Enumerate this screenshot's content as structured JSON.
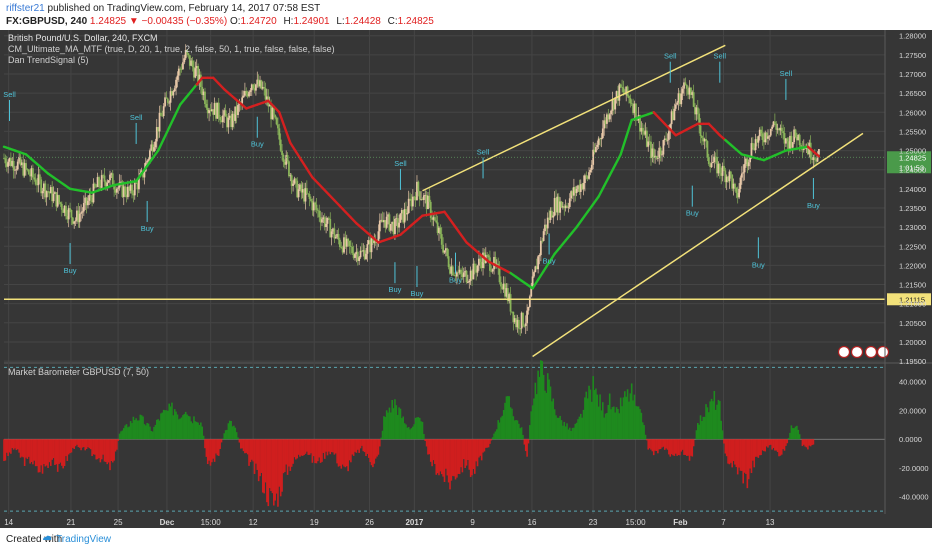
{
  "header": {
    "user": "riffster21",
    "published_text": " published on TradingView.com, February 14, 2017 07:58 EST",
    "symbol": "FX:GBPUSD, 240",
    "last": "1.24825",
    "change": "▼ −0.00435 (−0.35%)",
    "open_label": "O:",
    "open": "1.24720",
    "high_label": "H:",
    "high": "1.24901",
    "low_label": "L:",
    "low": "1.24428",
    "close_label": "C:",
    "close": "1.24825"
  },
  "legend": {
    "title": "British Pound/U.S. Dollar, 240, FXCM",
    "study1": "CM_Ultimate_MA_MTF (true, D, 20, 1, true, 2, false, 50, 1, true, false, false, false)",
    "study2": "Dan TrendSignal (5)",
    "oscillator": "Market Barometer GBPUSD (7, 50)"
  },
  "colors": {
    "background": "#363636",
    "grid": "#454545",
    "candle_up": "#e8c8a8",
    "candle_down": "#8ab45a",
    "ma_up": "#22c02a",
    "ma_down": "#d42020",
    "trendline": "#f2e17a",
    "signal_text": "#4fc3d8",
    "osc_up": "#1e8a1e",
    "osc_down": "#d01e1e"
  },
  "chart_data": [
    {
      "type": "candlestick",
      "title": "British Pound/U.S. Dollar, 240, FXCM",
      "x_ticks": [
        "14",
        "21",
        "25",
        "Dec",
        "15:00",
        "12",
        "19",
        "26",
        "2017",
        "9",
        "16",
        "23",
        "15:00",
        "Feb",
        "7",
        "13"
      ],
      "y_ticks": [
        "1.28000",
        "1.27500",
        "1.27000",
        "1.26500",
        "1.26000",
        "1.25500",
        "1.25000",
        "1.24500",
        "1.24000",
        "1.23500",
        "1.23000",
        "1.22500",
        "1.22000",
        "1.21500",
        "1.21000",
        "1.20500",
        "1.20000",
        "1.19500"
      ],
      "ylim": [
        1.1945,
        1.2815
      ],
      "close_path": [
        [
          0,
          1.248
        ],
        [
          3,
          1.246
        ],
        [
          6,
          1.242
        ],
        [
          9,
          1.238
        ],
        [
          11,
          1.235
        ],
        [
          13,
          1.232
        ],
        [
          15,
          1.236
        ],
        [
          17,
          1.241
        ],
        [
          19,
          1.243
        ],
        [
          21,
          1.24
        ],
        [
          23,
          1.239
        ],
        [
          25,
          1.243
        ],
        [
          27,
          1.252
        ],
        [
          29,
          1.261
        ],
        [
          31,
          1.268
        ],
        [
          33,
          1.275
        ],
        [
          35,
          1.27
        ],
        [
          37,
          1.262
        ],
        [
          39,
          1.26
        ],
        [
          41,
          1.257
        ],
        [
          43,
          1.262
        ],
        [
          45,
          1.268
        ],
        [
          47,
          1.266
        ],
        [
          49,
          1.258
        ],
        [
          51,
          1.248
        ],
        [
          53,
          1.24
        ],
        [
          55,
          1.238
        ],
        [
          57,
          1.234
        ],
        [
          59,
          1.23
        ],
        [
          61,
          1.226
        ],
        [
          63,
          1.224
        ],
        [
          65,
          1.223
        ],
        [
          67,
          1.226
        ],
        [
          69,
          1.232
        ],
        [
          71,
          1.23
        ],
        [
          73,
          1.234
        ],
        [
          75,
          1.24
        ],
        [
          77,
          1.236
        ],
        [
          79,
          1.228
        ],
        [
          81,
          1.22
        ],
        [
          83,
          1.217
        ],
        [
          85,
          1.218
        ],
        [
          87,
          1.222
        ],
        [
          89,
          1.22
        ],
        [
          91,
          1.214
        ],
        [
          93,
          1.205
        ],
        [
          95,
          1.206
        ],
        [
          96,
          1.215
        ],
        [
          98,
          1.229
        ],
        [
          100,
          1.236
        ],
        [
          102,
          1.236
        ],
        [
          104,
          1.24
        ],
        [
          106,
          1.243
        ],
        [
          108,
          1.253
        ],
        [
          110,
          1.261
        ],
        [
          112,
          1.266
        ],
        [
          114,
          1.263
        ],
        [
          116,
          1.255
        ],
        [
          118,
          1.248
        ],
        [
          120,
          1.252
        ],
        [
          122,
          1.262
        ],
        [
          124,
          1.268
        ],
        [
          126,
          1.258
        ],
        [
          128,
          1.248
        ],
        [
          130,
          1.245
        ],
        [
          132,
          1.243
        ],
        [
          133,
          1.237
        ],
        [
          134,
          1.244
        ],
        [
          136,
          1.252
        ],
        [
          138,
          1.254
        ],
        [
          140,
          1.257
        ],
        [
          142,
          1.252
        ],
        [
          144,
          1.254
        ],
        [
          146,
          1.2505
        ],
        [
          148,
          1.2482
        ]
      ],
      "series": [
        {
          "name": "CM_Ultimate_MA_MTF",
          "points": [
            [
              0,
              1.251
            ],
            [
              4,
              1.249
            ],
            [
              8,
              1.244
            ],
            [
              12,
              1.24
            ],
            [
              16,
              1.239
            ],
            [
              20,
              1.241
            ],
            [
              24,
              1.242
            ],
            [
              28,
              1.25
            ],
            [
              32,
              1.262
            ],
            [
              36,
              1.269
            ],
            [
              38,
              1.269
            ],
            [
              40,
              1.266
            ],
            [
              44,
              1.261
            ],
            [
              48,
              1.263
            ],
            [
              50,
              1.26
            ],
            [
              52,
              1.252
            ],
            [
              56,
              1.243
            ],
            [
              60,
              1.237
            ],
            [
              64,
              1.231
            ],
            [
              68,
              1.226
            ],
            [
              72,
              1.228
            ],
            [
              76,
              1.233
            ],
            [
              80,
              1.234
            ],
            [
              84,
              1.226
            ],
            [
              88,
              1.221
            ],
            [
              92,
              1.218
            ],
            [
              96,
              1.214
            ],
            [
              100,
              1.223
            ],
            [
              104,
              1.23
            ],
            [
              108,
              1.238
            ],
            [
              112,
              1.249
            ],
            [
              114,
              1.258
            ],
            [
              118,
              1.26
            ],
            [
              120,
              1.257
            ],
            [
              122,
              1.254
            ],
            [
              126,
              1.257
            ],
            [
              128,
              1.257
            ],
            [
              130,
              1.254
            ],
            [
              134,
              1.249
            ],
            [
              138,
              1.2475
            ],
            [
              142,
              1.25
            ],
            [
              146,
              1.251
            ],
            [
              148,
              1.2485
            ]
          ],
          "down_segments": [
            [
              35,
              51
            ],
            [
              51,
              92
            ],
            [
              118,
              131
            ],
            [
              146,
              148
            ]
          ]
        }
      ],
      "annotations": [
        {
          "label": "1.21115",
          "y": 1.21115,
          "type": "horizontal-line"
        },
        {
          "label": "1.24825",
          "y": 1.24825,
          "type": "price-marker"
        },
        {
          "label": "1:01:53",
          "type": "countdown"
        }
      ],
      "trendlines": [
        {
          "from": [
            76,
            1.2395
          ],
          "to": [
            131,
            1.2775
          ]
        },
        {
          "from": [
            96,
            1.1962
          ],
          "to": [
            156,
            1.2545
          ]
        }
      ],
      "signals": [
        {
          "label": "Sell",
          "x": 1,
          "y": 1.264
        },
        {
          "label": "Buy",
          "x": 12,
          "y": 1.218
        },
        {
          "label": "Buy",
          "x": 26,
          "y": 1.229
        },
        {
          "label": "Sell",
          "x": 24,
          "y": 1.258
        },
        {
          "label": "Buy",
          "x": 46,
          "y": 1.251
        },
        {
          "label": "Sell",
          "x": 72,
          "y": 1.246
        },
        {
          "label": "Buy",
          "x": 71,
          "y": 1.213
        },
        {
          "label": "Buy",
          "x": 75,
          "y": 1.212
        },
        {
          "label": "Buy",
          "x": 82,
          "y": 1.2155
        },
        {
          "label": "Sell",
          "x": 87,
          "y": 1.249
        },
        {
          "label": "Buy",
          "x": 99,
          "y": 1.2205
        },
        {
          "label": "Sell",
          "x": 121,
          "y": 1.274
        },
        {
          "label": "Buy",
          "x": 125,
          "y": 1.233
        },
        {
          "label": "Sell",
          "x": 130,
          "y": 1.274
        },
        {
          "label": "Buy",
          "x": 137,
          "y": 1.2195
        },
        {
          "label": "Sell",
          "x": 142,
          "y": 1.2695
        },
        {
          "label": "Buy",
          "x": 147,
          "y": 1.235
        }
      ]
    },
    {
      "type": "bar",
      "title": "Market Barometer GBPUSD (7, 50)",
      "y_ticks": [
        "40.0000",
        "20.0000",
        "0.0000",
        "-20.0000",
        "-40.0000"
      ],
      "ylim": [
        -52,
        53
      ],
      "dashed_levels": [
        50,
        -50
      ],
      "values": [
        [
          0,
          -14
        ],
        [
          1,
          -10
        ],
        [
          2,
          -6
        ],
        [
          3,
          -12
        ],
        [
          4,
          -16
        ],
        [
          5,
          -14
        ],
        [
          6,
          -22
        ],
        [
          7,
          -20
        ],
        [
          8,
          -18
        ],
        [
          9,
          -12
        ],
        [
          10,
          -22
        ],
        [
          11,
          -16
        ],
        [
          12,
          -10
        ],
        [
          13,
          -4
        ],
        [
          14,
          -8
        ],
        [
          15,
          -6
        ],
        [
          16,
          -10
        ],
        [
          17,
          -12
        ],
        [
          18,
          -14
        ],
        [
          19,
          -20
        ],
        [
          20,
          -16
        ],
        [
          21,
          4
        ],
        [
          22,
          8
        ],
        [
          23,
          12
        ],
        [
          24,
          16
        ],
        [
          25,
          14
        ],
        [
          26,
          10
        ],
        [
          27,
          6
        ],
        [
          28,
          14
        ],
        [
          29,
          18
        ],
        [
          30,
          20
        ],
        [
          31,
          22
        ],
        [
          32,
          16
        ],
        [
          33,
          24
        ],
        [
          34,
          14
        ],
        [
          35,
          16
        ],
        [
          36,
          10
        ],
        [
          37,
          -20
        ],
        [
          38,
          -14
        ],
        [
          39,
          -10
        ],
        [
          40,
          4
        ],
        [
          41,
          12
        ],
        [
          42,
          8
        ],
        [
          43,
          -6
        ],
        [
          44,
          -12
        ],
        [
          45,
          -18
        ],
        [
          46,
          -24
        ],
        [
          47,
          -30
        ],
        [
          48,
          -38
        ],
        [
          49,
          -44
        ],
        [
          50,
          -36
        ],
        [
          51,
          -24
        ],
        [
          52,
          -18
        ],
        [
          53,
          -14
        ],
        [
          54,
          -10
        ],
        [
          55,
          -8
        ],
        [
          56,
          -14
        ],
        [
          57,
          -16
        ],
        [
          58,
          -12
        ],
        [
          59,
          -8
        ],
        [
          60,
          -10
        ],
        [
          61,
          -18
        ],
        [
          62,
          -22
        ],
        [
          63,
          -14
        ],
        [
          64,
          -10
        ],
        [
          65,
          -6
        ],
        [
          66,
          -12
        ],
        [
          67,
          -16
        ],
        [
          68,
          -12
        ],
        [
          69,
          14
        ],
        [
          70,
          22
        ],
        [
          71,
          26
        ],
        [
          72,
          18
        ],
        [
          73,
          10
        ],
        [
          74,
          8
        ],
        [
          75,
          14
        ],
        [
          76,
          10
        ],
        [
          77,
          -12
        ],
        [
          78,
          -18
        ],
        [
          79,
          -22
        ],
        [
          80,
          -26
        ],
        [
          81,
          -30
        ],
        [
          82,
          -24
        ],
        [
          83,
          -20
        ],
        [
          84,
          -16
        ],
        [
          85,
          -24
        ],
        [
          86,
          -18
        ],
        [
          87,
          -10
        ],
        [
          88,
          -6
        ],
        [
          89,
          4
        ],
        [
          90,
          14
        ],
        [
          91,
          26
        ],
        [
          92,
          24
        ],
        [
          93,
          14
        ],
        [
          94,
          8
        ],
        [
          95,
          -14
        ],
        [
          96,
          30
        ],
        [
          97,
          44
        ],
        [
          98,
          48
        ],
        [
          99,
          36
        ],
        [
          100,
          22
        ],
        [
          101,
          14
        ],
        [
          102,
          10
        ],
        [
          103,
          6
        ],
        [
          104,
          10
        ],
        [
          105,
          18
        ],
        [
          106,
          30
        ],
        [
          107,
          36
        ],
        [
          108,
          28
        ],
        [
          109,
          20
        ],
        [
          110,
          26
        ],
        [
          111,
          16
        ],
        [
          112,
          24
        ],
        [
          113,
          30
        ],
        [
          114,
          32
        ],
        [
          115,
          20
        ],
        [
          116,
          14
        ],
        [
          117,
          -6
        ],
        [
          118,
          -10
        ],
        [
          119,
          -8
        ],
        [
          120,
          -6
        ],
        [
          121,
          -10
        ],
        [
          122,
          -12
        ],
        [
          123,
          -8
        ],
        [
          124,
          -14
        ],
        [
          125,
          -10
        ],
        [
          126,
          10
        ],
        [
          127,
          18
        ],
        [
          128,
          22
        ],
        [
          129,
          28
        ],
        [
          130,
          22
        ],
        [
          131,
          -12
        ],
        [
          132,
          -16
        ],
        [
          133,
          -20
        ],
        [
          134,
          -24
        ],
        [
          135,
          -28
        ],
        [
          136,
          -18
        ],
        [
          137,
          -12
        ],
        [
          138,
          -8
        ],
        [
          139,
          -4
        ],
        [
          140,
          -8
        ],
        [
          141,
          -10
        ],
        [
          142,
          -6
        ],
        [
          143,
          8
        ],
        [
          144,
          12
        ],
        [
          145,
          -4
        ],
        [
          146,
          -6
        ],
        [
          147,
          -4
        ]
      ]
    }
  ]
}
